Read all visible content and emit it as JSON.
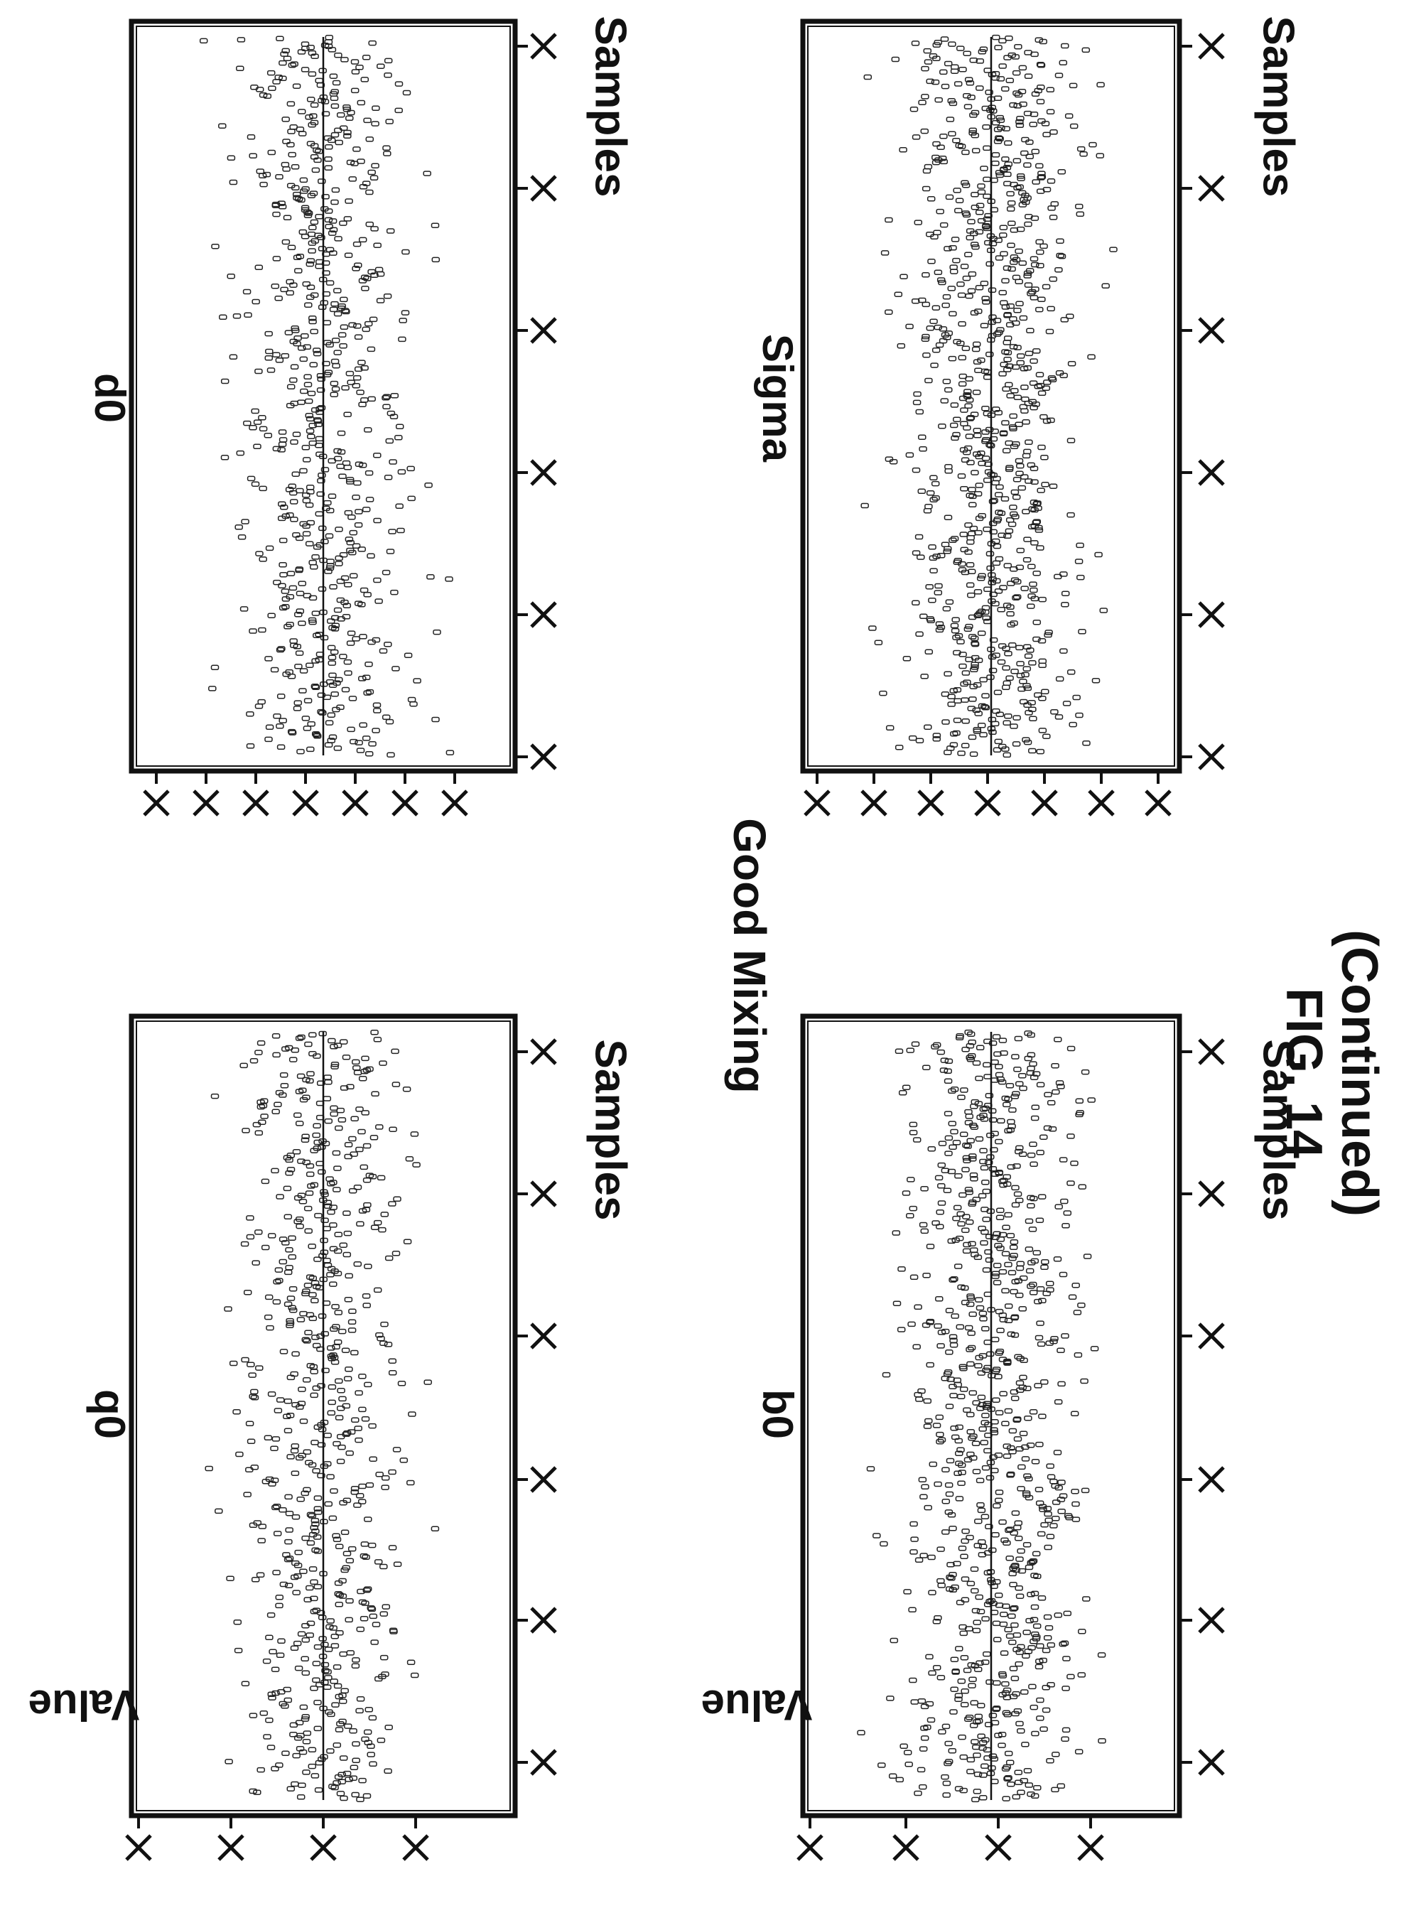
{
  "figure": {
    "heading": "Good Mixing",
    "caption_line1": "FIG. 14",
    "caption_line2": "(Continued)"
  },
  "chart_data": [
    {
      "type": "scatter",
      "title": "q0",
      "xlabel": "Samples",
      "ylabel": "Value",
      "x_tick_labels": [
        "X",
        "X",
        "X",
        "X",
        "X",
        "X"
      ],
      "y_tick_labels": [
        "X",
        "X",
        "X",
        "X"
      ],
      "xlim": [
        0,
        5000
      ],
      "ylim": [
        -3,
        3
      ],
      "trend": [
        0,
        0,
        0,
        0,
        0,
        0
      ],
      "point_count": 650,
      "spread": 0.95,
      "grid": false,
      "legend": "none"
    },
    {
      "type": "scatter",
      "title": "d0",
      "xlabel": "Samples",
      "ylabel": "",
      "x_tick_labels": [
        "X",
        "X",
        "X",
        "X",
        "X",
        "X"
      ],
      "y_tick_labels": [
        "X",
        "X",
        "X",
        "X",
        "X",
        "X",
        "X"
      ],
      "xlim": [
        0,
        5000
      ],
      "ylim": [
        -3,
        3
      ],
      "trend": [
        0,
        0,
        0,
        0,
        0,
        0
      ],
      "point_count": 650,
      "spread": 0.95,
      "grid": false,
      "legend": "none"
    },
    {
      "type": "scatter",
      "title": "b0",
      "xlabel": "Samples",
      "ylabel": "Value",
      "x_tick_labels": [
        "X",
        "X",
        "X",
        "X",
        "X",
        "X"
      ],
      "y_tick_labels": [
        "X",
        "X",
        "X",
        "X"
      ],
      "xlim": [
        0,
        5000
      ],
      "ylim": [
        -3,
        3
      ],
      "trend": [
        0,
        0,
        0,
        0,
        0,
        0
      ],
      "point_count": 850,
      "spread": 1.0,
      "grid": false,
      "legend": "none"
    },
    {
      "type": "scatter",
      "title": "Sigma",
      "xlabel": "Samples",
      "ylabel": "",
      "x_tick_labels": [
        "X",
        "X",
        "X",
        "X",
        "X",
        "X"
      ],
      "y_tick_labels": [
        "X",
        "X",
        "X",
        "X",
        "X",
        "X",
        "X"
      ],
      "xlim": [
        0,
        5000
      ],
      "ylim": [
        -3,
        3
      ],
      "trend": [
        0,
        0,
        0,
        0,
        0,
        0
      ],
      "point_count": 850,
      "spread": 1.0,
      "grid": false,
      "legend": "none"
    }
  ]
}
